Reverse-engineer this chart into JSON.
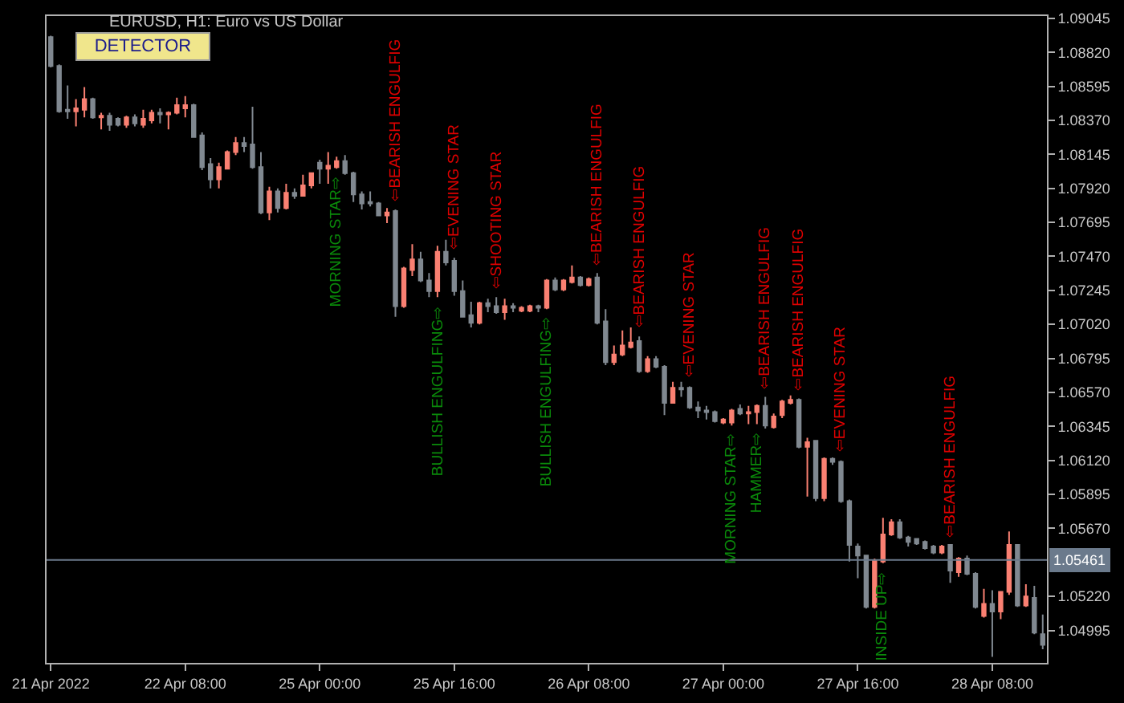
{
  "chart_data": {
    "type": "candlestick",
    "title": "EURUSD, H1: Euro vs US Dollar",
    "categories": [
      "21 Apr 2022",
      null,
      null,
      null,
      null,
      null,
      null,
      null,
      null,
      null,
      null,
      null,
      null,
      null,
      null,
      null,
      "22 Apr 08:00",
      null,
      null,
      null,
      null,
      null,
      null,
      null,
      null,
      null,
      null,
      null,
      null,
      null,
      null,
      null,
      "25 Apr 00:00",
      null,
      null,
      null,
      null,
      null,
      null,
      null,
      null,
      null,
      null,
      null,
      null,
      null,
      null,
      null,
      "25 Apr 16:00",
      null,
      null,
      null,
      null,
      null,
      null,
      null,
      null,
      null,
      null,
      null,
      null,
      null,
      null,
      null,
      "26 Apr 08:00",
      null,
      null,
      null,
      null,
      null,
      null,
      null,
      null,
      null,
      null,
      null,
      null,
      null,
      null,
      null,
      "27 Apr 00:00",
      null,
      null,
      null,
      null,
      null,
      null,
      null,
      null,
      null,
      null,
      null,
      null,
      null,
      null,
      null,
      "27 Apr 16:00",
      null,
      null,
      null,
      null,
      null,
      null,
      null,
      null,
      null,
      null,
      null,
      null,
      null,
      null,
      null,
      "28 Apr 08:00",
      null,
      null,
      null,
      null,
      null,
      null
    ],
    "ohlc": [
      [
        1.0892,
        1.0893,
        1.0872,
        1.0873
      ],
      [
        1.0873,
        1.0874,
        1.0842,
        1.0843
      ],
      [
        1.0844,
        1.086,
        1.0838,
        1.0843
      ],
      [
        1.0843,
        1.0851,
        1.0833,
        1.0845
      ],
      [
        1.0844,
        1.0859,
        1.0839,
        1.0851
      ],
      [
        1.0851,
        1.0852,
        1.0838,
        1.0839
      ],
      [
        1.0839,
        1.0842,
        1.0831,
        1.084
      ],
      [
        1.084,
        1.0842,
        1.083,
        1.0834
      ],
      [
        1.0838,
        1.0839,
        1.0833,
        1.0834
      ],
      [
        1.0834,
        1.084,
        1.0832,
        1.0839
      ],
      [
        1.0839,
        1.0841,
        1.0833,
        1.0835
      ],
      [
        1.0834,
        1.0844,
        1.0832,
        1.0838
      ],
      [
        1.0837,
        1.0844,
        1.0835,
        1.0842
      ],
      [
        1.0842,
        1.0845,
        1.0835,
        1.0841
      ],
      [
        1.0841,
        1.0843,
        1.0831,
        1.0842
      ],
      [
        1.0842,
        1.0852,
        1.0841,
        1.0847
      ],
      [
        1.0845,
        1.0853,
        1.0839,
        1.0847
      ],
      [
        1.0847,
        1.0848,
        1.0826,
        1.0826
      ],
      [
        1.0827,
        1.0829,
        1.0804,
        1.0806
      ],
      [
        1.0808,
        1.0812,
        1.0792,
        1.0798
      ],
      [
        1.0798,
        1.0809,
        1.0792,
        1.0806
      ],
      [
        1.0805,
        1.0817,
        1.0805,
        1.0816
      ],
      [
        1.0816,
        1.0826,
        1.0814,
        1.0822
      ],
      [
        1.0822,
        1.0826,
        1.0816,
        1.082
      ],
      [
        1.0821,
        1.0846,
        1.0805,
        1.0806
      ],
      [
        1.0806,
        1.0816,
        1.0775,
        1.0776
      ],
      [
        1.0776,
        1.0793,
        1.0771,
        1.079
      ],
      [
        1.079,
        1.0792,
        1.0776,
        1.0779
      ],
      [
        1.0779,
        1.0795,
        1.0778,
        1.0789
      ],
      [
        1.0789,
        1.0792,
        1.0785,
        1.0787
      ],
      [
        1.0787,
        1.0801,
        1.0787,
        1.0794
      ],
      [
        1.0794,
        1.0802,
        1.0792,
        1.0802
      ],
      [
        1.0809,
        1.0811,
        1.0795,
        1.0805
      ],
      [
        1.0805,
        1.0816,
        1.0795,
        1.0807
      ],
      [
        1.0806,
        1.0813,
        1.0805,
        1.081
      ],
      [
        1.081,
        1.0814,
        1.0801,
        1.0802
      ],
      [
        1.0802,
        1.0803,
        1.0783,
        1.0788
      ],
      [
        1.0788,
        1.079,
        1.0778,
        1.0782
      ],
      [
        1.0783,
        1.079,
        1.078,
        1.0782
      ],
      [
        1.0782,
        1.0783,
        1.0774,
        1.0774
      ],
      [
        1.0774,
        1.0779,
        1.0769,
        1.0776
      ],
      [
        1.0777,
        1.0778,
        1.0707,
        1.0714
      ],
      [
        1.0714,
        1.074,
        1.0713,
        1.0739
      ],
      [
        1.0738,
        1.0755,
        1.0734,
        1.0745
      ],
      [
        1.0745,
        1.075,
        1.073,
        1.0731
      ],
      [
        1.0731,
        1.0736,
        1.072,
        1.0724
      ],
      [
        1.0724,
        1.0754,
        1.072,
        1.075
      ],
      [
        1.075,
        1.0758,
        1.0741,
        1.0743
      ],
      [
        1.0744,
        1.0746,
        1.0721,
        1.0724
      ],
      [
        1.0724,
        1.0731,
        1.0707,
        1.0707
      ],
      [
        1.0708,
        1.0717,
        1.07,
        1.0703
      ],
      [
        1.0703,
        1.0717,
        1.0702,
        1.0716
      ],
      [
        1.0716,
        1.0719,
        1.071,
        1.0714
      ],
      [
        1.0714,
        1.072,
        1.0709,
        1.071
      ],
      [
        1.071,
        1.0719,
        1.0705,
        1.0714
      ],
      [
        1.0714,
        1.0716,
        1.071,
        1.0713
      ],
      [
        1.0711,
        1.0714,
        1.071,
        1.0713
      ],
      [
        1.0711,
        1.0715,
        1.071,
        1.0714
      ],
      [
        1.0714,
        1.0715,
        1.071,
        1.0713
      ],
      [
        1.0713,
        1.0732,
        1.0712,
        1.0731
      ],
      [
        1.0731,
        1.0733,
        1.0724,
        1.0725
      ],
      [
        1.0725,
        1.0732,
        1.0724,
        1.0731
      ],
      [
        1.073,
        1.0741,
        1.0729,
        1.0733
      ],
      [
        1.0733,
        1.0734,
        1.0727,
        1.0728
      ],
      [
        1.0728,
        1.0733,
        1.0727,
        1.0732
      ],
      [
        1.0733,
        1.0736,
        1.0702,
        1.0703
      ],
      [
        1.0704,
        1.0712,
        1.0675,
        1.0677
      ],
      [
        1.0677,
        1.0688,
        1.0675,
        1.0682
      ],
      [
        1.0682,
        1.0698,
        1.0681,
        1.0688
      ],
      [
        1.0687,
        1.07,
        1.0686,
        1.069
      ],
      [
        1.0691,
        1.0694,
        1.067,
        1.0671
      ],
      [
        1.0671,
        1.0681,
        1.067,
        1.0679
      ],
      [
        1.0679,
        1.0681,
        1.0673,
        1.0674
      ],
      [
        1.0674,
        1.0675,
        1.0642,
        1.065
      ],
      [
        1.065,
        1.0664,
        1.065,
        1.066
      ],
      [
        1.066,
        1.0664,
        1.0654,
        1.0659
      ],
      [
        1.066,
        1.0661,
        1.0646,
        1.0647
      ],
      [
        1.0647,
        1.0651,
        1.064,
        1.0645
      ],
      [
        1.0645,
        1.0648,
        1.0639,
        1.0644
      ],
      [
        1.0644,
        1.0645,
        1.0637,
        1.0638
      ],
      [
        1.0637,
        1.064,
        1.0636,
        1.0639
      ],
      [
        1.0637,
        1.0646,
        1.0635,
        1.0645
      ],
      [
        1.0646,
        1.0649,
        1.0642,
        1.0643
      ],
      [
        1.0643,
        1.0648,
        1.0636,
        1.0644
      ],
      [
        1.0644,
        1.0649,
        1.0636,
        1.0648
      ],
      [
        1.0648,
        1.0654,
        1.0633,
        1.0635
      ],
      [
        1.0634,
        1.0643,
        1.0633,
        1.0641
      ],
      [
        1.0642,
        1.0652,
        1.064,
        1.0651
      ],
      [
        1.065,
        1.0655,
        1.0649,
        1.0652
      ],
      [
        1.0652,
        1.0653,
        1.062,
        1.0621
      ],
      [
        1.0621,
        1.0627,
        1.0588,
        1.0624
      ],
      [
        1.0625,
        1.0625,
        1.0585,
        1.0587
      ],
      [
        1.0587,
        1.0614,
        1.0585,
        1.0613
      ],
      [
        1.0613,
        1.0614,
        1.0609,
        1.0611
      ],
      [
        1.0611,
        1.0612,
        1.0584,
        1.0585
      ],
      [
        1.0585,
        1.0586,
        1.0545,
        1.0556
      ],
      [
        1.0555,
        1.0557,
        1.0534,
        1.0549
      ],
      [
        1.0549,
        1.0549,
        1.0514,
        1.0515
      ],
      [
        1.0515,
        1.0547,
        1.0514,
        1.0546
      ],
      [
        1.0545,
        1.0574,
        1.0544,
        1.0563
      ],
      [
        1.0563,
        1.0573,
        1.0562,
        1.0571
      ],
      [
        1.0571,
        1.0573,
        1.056,
        1.0561
      ],
      [
        1.0561,
        1.0562,
        1.0555,
        1.0558
      ],
      [
        1.056,
        1.056,
        1.0556,
        1.0557
      ],
      [
        1.0558,
        1.0559,
        1.0553,
        1.0554
      ],
      [
        1.0555,
        1.0556,
        1.055,
        1.0551
      ],
      [
        1.0551,
        1.0556,
        1.055,
        1.0555
      ],
      [
        1.0556,
        1.0556,
        1.0531,
        1.0539
      ],
      [
        1.0538,
        1.0548,
        1.0535,
        1.0547
      ],
      [
        1.0547,
        1.0549,
        1.0536,
        1.0537
      ],
      [
        1.0537,
        1.0538,
        1.0514,
        1.0515
      ],
      [
        1.0509,
        1.0527,
        1.0508,
        1.0517
      ],
      [
        1.0517,
        1.0526,
        1.0482,
        1.0512
      ],
      [
        1.0512,
        1.0525,
        1.0507,
        1.0525
      ],
      [
        1.0525,
        1.0565,
        1.0523,
        1.0556
      ],
      [
        1.0556,
        1.0556,
        1.0515,
        1.0516
      ],
      [
        1.0516,
        1.053,
        1.0515,
        1.0522
      ],
      [
        1.0521,
        1.0529,
        1.0497,
        1.0498
      ],
      [
        1.0497,
        1.051,
        1.0487,
        1.049
      ]
    ],
    "colors": [
      "#808890",
      "#808890",
      "#808890",
      "#fa8072",
      "#fa8072",
      "#808890",
      "#fa8072",
      "#808890",
      "#808890",
      "#fa8072",
      "#808890",
      "#fa8072",
      "#fa8072",
      "#808890",
      "#fa8072",
      "#fa8072",
      "#fa8072",
      "#808890",
      "#808890",
      "#808890",
      "#fa8072",
      "#fa8072",
      "#fa8072",
      "#808890",
      "#808890",
      "#808890",
      "#fa8072",
      "#808890",
      "#fa8072",
      "#808890",
      "#fa8072",
      "#fa8072",
      "#808890",
      "#fa8072",
      "#fa8072",
      "#808890",
      "#808890",
      "#808890",
      "#808890",
      "#808890",
      "#fa8072",
      "#808890",
      "#fa8072",
      "#fa8072",
      "#808890",
      "#808890",
      "#fa8072",
      "#808890",
      "#808890",
      "#808890",
      "#808890",
      "#fa8072",
      "#808890",
      "#808890",
      "#fa8072",
      "#808890",
      "#fa8072",
      "#fa8072",
      "#808890",
      "#fa8072",
      "#808890",
      "#fa8072",
      "#fa8072",
      "#808890",
      "#fa8072",
      "#808890",
      "#808890",
      "#fa8072",
      "#fa8072",
      "#fa8072",
      "#808890",
      "#fa8072",
      "#808890",
      "#808890",
      "#fa8072",
      "#808890",
      "#808890",
      "#808890",
      "#808890",
      "#808890",
      "#fa8072",
      "#fa8072",
      "#808890",
      "#fa8072",
      "#fa8072",
      "#808890",
      "#fa8072",
      "#fa8072",
      "#fa8072",
      "#808890",
      "#fa8072",
      "#808890",
      "#fa8072",
      "#808890",
      "#808890",
      "#808890",
      "#808890",
      "#808890",
      "#fa8072",
      "#fa8072",
      "#fa8072",
      "#808890",
      "#808890",
      "#808890",
      "#808890",
      "#808890",
      "#fa8072",
      "#808890",
      "#fa8072",
      "#808890",
      "#808890",
      "#fa8072",
      "#808890",
      "#fa8072",
      "#fa8072",
      "#808890",
      "#fa8072",
      "#808890",
      "#808890"
    ],
    "value_labels": [
      null,
      null,
      null,
      null,
      null,
      null,
      null,
      null,
      null,
      null,
      null,
      null,
      null,
      null,
      null,
      null,
      null,
      null,
      null,
      null,
      null,
      null,
      null,
      null,
      null,
      null,
      null,
      null,
      null,
      null,
      null,
      null,
      null,
      null,
      "MORNING STAR⇨",
      null,
      null,
      null,
      null,
      null,
      null,
      "⇦BEARISH ENGULFIG",
      null,
      null,
      null,
      null,
      "BULLISH ENGULFING⇨",
      null,
      "⇦EVENING STAR",
      null,
      null,
      null,
      null,
      "⇦SHOOTING STAR",
      null,
      null,
      null,
      null,
      null,
      "BULLISH ENGULFING⇨",
      null,
      null,
      null,
      null,
      null,
      "⇦BEARISH ENGULFIG",
      null,
      null,
      null,
      null,
      "⇦BEARISH ENGULFIG",
      null,
      null,
      null,
      null,
      null,
      "⇦EVENING STAR",
      null,
      null,
      null,
      null,
      "MORNING STAR⇨",
      null,
      null,
      "HAMMER⇨",
      "⇦BEARISH ENGULFIG",
      null,
      null,
      null,
      "⇦BEARISH ENGULFIG",
      null,
      null,
      null,
      null,
      "⇦EVENING STAR",
      null,
      null,
      null,
      null,
      "INSIDE UP⇨",
      null,
      null,
      null,
      null,
      null,
      null,
      null,
      "⇦BEARISH ENGULFIG",
      null,
      null,
      null,
      null,
      null,
      null,
      null,
      null,
      null,
      null,
      null
    ],
    "ylim": [
      1.0478,
      1.0906
    ],
    "yticks": [
      1.09045,
      {
        "value": 1.0882,
        "label": "1.08820"
      },
      1.08595,
      {
        "value": 1.0837,
        "label": "1.08370"
      },
      1.08145,
      {
        "value": 1.0792,
        "label": "1.07920"
      },
      1.07695,
      {
        "value": 1.0747,
        "label": "1.07470"
      },
      1.07245,
      {
        "value": 1.0702,
        "label": "1.07020"
      },
      1.06795,
      {
        "value": 1.0657,
        "label": "1.06570"
      },
      1.06345,
      {
        "value": 1.0612,
        "label": "1.06120"
      },
      1.05895,
      {
        "value": 1.0567,
        "label": "1.05670"
      },
      {
        "value": 1.0522,
        "label": "1.05220"
      },
      1.04995
    ],
    "ref_lines": [
      {
        "axis": "y",
        "value": 1.05461,
        "label": "1.05461",
        "color": "#6b7a8c"
      }
    ],
    "annotations": [
      "DETECTOR"
    ]
  }
}
